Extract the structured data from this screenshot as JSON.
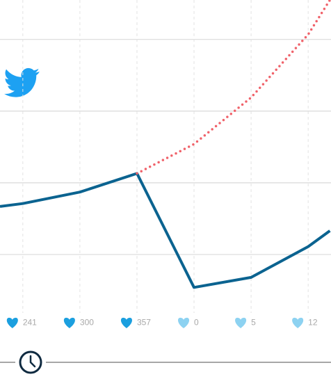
{
  "chart_data": {
    "type": "line",
    "xlim": [
      0.6,
      6.4
    ],
    "ylim": [
      0,
      4.55
    ],
    "xticks": [
      1,
      2,
      3,
      4,
      5,
      6
    ],
    "yticks": [
      1,
      2,
      3,
      4
    ],
    "grid": true,
    "series": [
      {
        "color": "#0b6390",
        "style": "solid",
        "x": [
          0.6,
          1,
          2,
          3,
          4,
          5,
          6,
          6.38
        ],
        "values": [
          1.67,
          1.71,
          1.87,
          2.13,
          0.54,
          0.68,
          1.11,
          1.33
        ]
      },
      {
        "color": "#f0626a",
        "style": "dotted",
        "x": [
          3,
          4,
          5,
          6,
          6.38
        ],
        "values": [
          2.13,
          2.54,
          3.19,
          4.07,
          4.55
        ]
      }
    ],
    "likes": [
      241,
      300,
      357,
      0,
      5,
      12
    ],
    "like_colors": [
      "#1b9fdf",
      "#1b9fdf",
      "#1b9fdf",
      "#8dd2f1",
      "#8dd2f1",
      "#8dd2f1"
    ]
  }
}
